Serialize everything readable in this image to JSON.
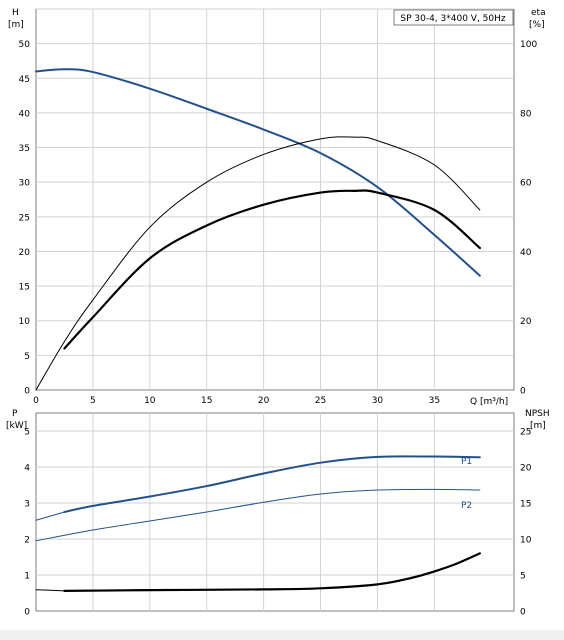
{
  "chart_data": [
    {
      "type": "line",
      "panel": "top",
      "info_box": "SP 30-4, 3*400 V, 50Hz",
      "xlabel": "Q [m³/h]",
      "x_ticks": [
        "0",
        "5",
        "10",
        "15",
        "20",
        "25",
        "30",
        "35"
      ],
      "xlim": [
        0,
        42
      ],
      "left_axis": {
        "label_line1": "H",
        "label_line2": "[m]",
        "ylim": [
          0,
          55
        ],
        "ticks": [
          "0",
          "5",
          "10",
          "15",
          "20",
          "25",
          "30",
          "35",
          "40",
          "45",
          "50"
        ]
      },
      "right_axis": {
        "label_line1": "eta",
        "label_line2": "[%]",
        "ylim": [
          0,
          110
        ],
        "ticks": [
          "0",
          "20",
          "40",
          "60",
          "80",
          "100"
        ]
      },
      "grid": true,
      "series": [
        {
          "key": "H",
          "axis": "left",
          "color": "#24508a",
          "width": 2.0,
          "x": [
            0,
            2.5,
            5,
            10,
            15,
            20,
            25,
            30,
            35,
            39
          ],
          "y": [
            46.0,
            46.3,
            45.9,
            43.5,
            40.6,
            37.6,
            34.2,
            29.3,
            22.4,
            16.5
          ]
        },
        {
          "key": "eta",
          "axis": "right",
          "color": "#000000",
          "width": 1.0,
          "x": [
            0,
            2.5,
            5,
            10,
            15,
            20,
            25,
            28,
            30,
            35,
            39
          ],
          "y": [
            0,
            14,
            26,
            47,
            60,
            68,
            72.5,
            73,
            72,
            65,
            52
          ]
        },
        {
          "key": "eta_lower",
          "axis": "right",
          "color": "#000000",
          "width": 2.2,
          "x": [
            2.5,
            5,
            10,
            15,
            20,
            25,
            28,
            30,
            35,
            39
          ],
          "y": [
            12,
            21,
            38,
            47.5,
            53.5,
            57,
            57.5,
            57,
            52,
            41
          ]
        }
      ]
    },
    {
      "type": "line",
      "panel": "bottom",
      "x_ticks": [
        "0",
        "5",
        "10",
        "15",
        "20",
        "25",
        "30",
        "35"
      ],
      "xlim": [
        0,
        42
      ],
      "left_axis": {
        "label_line1": "P",
        "label_line2": "[kW]",
        "ylim": [
          0,
          5.5
        ],
        "ticks": [
          "0",
          "1",
          "2",
          "3",
          "4",
          "5"
        ]
      },
      "right_axis": {
        "label_line1": "NPSH",
        "label_line2": "[m]",
        "ylim": [
          0,
          27.5
        ],
        "ticks": [
          "0",
          "5",
          "10",
          "15",
          "20",
          "25"
        ]
      },
      "grid": true,
      "series": [
        {
          "key": "P1_ext",
          "axis": "left",
          "color": "#24508a",
          "width": 1.0,
          "x": [
            0,
            2.5
          ],
          "y": [
            2.52,
            2.75
          ]
        },
        {
          "key": "P1",
          "name": "P1",
          "axis": "left",
          "color": "#24508a",
          "width": 2.0,
          "x": [
            2.5,
            5,
            10,
            15,
            20,
            25,
            30,
            35,
            39
          ],
          "y": [
            2.75,
            2.92,
            3.18,
            3.47,
            3.82,
            4.12,
            4.28,
            4.29,
            4.27
          ]
        },
        {
          "key": "P2",
          "name": "P2",
          "axis": "left",
          "color": "#24508a",
          "width": 1.0,
          "x": [
            0,
            5,
            10,
            15,
            20,
            25,
            30,
            35,
            39
          ],
          "y": [
            1.95,
            2.25,
            2.5,
            2.75,
            3.02,
            3.25,
            3.36,
            3.38,
            3.36
          ]
        },
        {
          "key": "NPSH_ext",
          "axis": "right",
          "color": "#000000",
          "width": 1.0,
          "x": [
            0,
            2.5
          ],
          "y": [
            2.95,
            2.8
          ]
        },
        {
          "key": "NPSH",
          "axis": "right",
          "color": "#000000",
          "width": 2.2,
          "x": [
            2.5,
            10,
            20,
            25,
            30,
            33,
            35,
            37,
            39
          ],
          "y": [
            2.8,
            2.9,
            3.0,
            3.15,
            3.7,
            4.6,
            5.5,
            6.6,
            8.0
          ]
        }
      ]
    }
  ]
}
